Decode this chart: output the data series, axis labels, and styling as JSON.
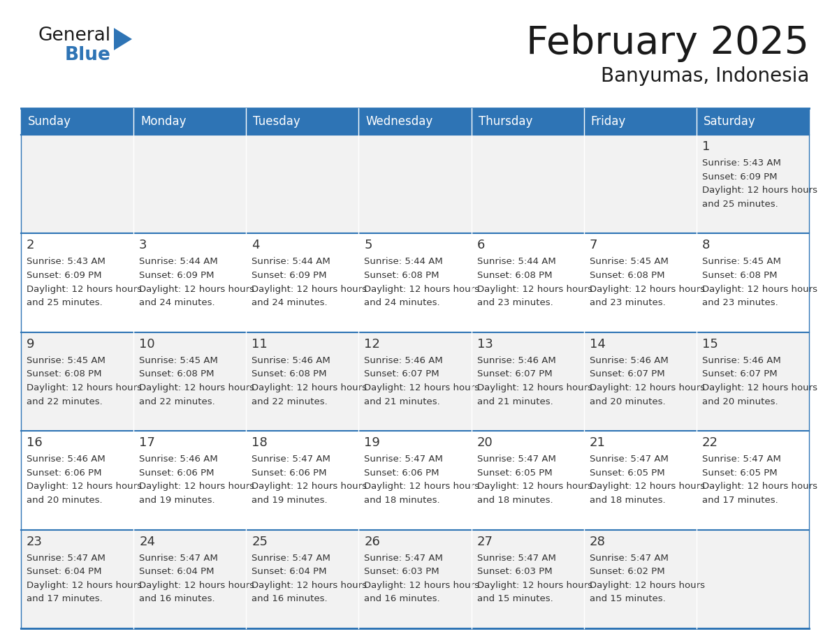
{
  "title": "February 2025",
  "subtitle": "Banyumas, Indonesia",
  "header_color": "#2E74B5",
  "header_text_color": "#FFFFFF",
  "cell_bg_even": "#F2F2F2",
  "cell_bg_odd": "#FFFFFF",
  "border_color": "#2E74B5",
  "text_color": "#333333",
  "days_of_week": [
    "Sunday",
    "Monday",
    "Tuesday",
    "Wednesday",
    "Thursday",
    "Friday",
    "Saturday"
  ],
  "calendar_data": [
    [
      {
        "day": "",
        "sunrise": "",
        "sunset": "",
        "daylight": ""
      },
      {
        "day": "",
        "sunrise": "",
        "sunset": "",
        "daylight": ""
      },
      {
        "day": "",
        "sunrise": "",
        "sunset": "",
        "daylight": ""
      },
      {
        "day": "",
        "sunrise": "",
        "sunset": "",
        "daylight": ""
      },
      {
        "day": "",
        "sunrise": "",
        "sunset": "",
        "daylight": ""
      },
      {
        "day": "",
        "sunrise": "",
        "sunset": "",
        "daylight": ""
      },
      {
        "day": "1",
        "sunrise": "5:43 AM",
        "sunset": "6:09 PM",
        "daylight": "12 hours and 25 minutes."
      }
    ],
    [
      {
        "day": "2",
        "sunrise": "5:43 AM",
        "sunset": "6:09 PM",
        "daylight": "12 hours and 25 minutes."
      },
      {
        "day": "3",
        "sunrise": "5:44 AM",
        "sunset": "6:09 PM",
        "daylight": "12 hours and 24 minutes."
      },
      {
        "day": "4",
        "sunrise": "5:44 AM",
        "sunset": "6:09 PM",
        "daylight": "12 hours and 24 minutes."
      },
      {
        "day": "5",
        "sunrise": "5:44 AM",
        "sunset": "6:08 PM",
        "daylight": "12 hours and 24 minutes."
      },
      {
        "day": "6",
        "sunrise": "5:44 AM",
        "sunset": "6:08 PM",
        "daylight": "12 hours and 23 minutes."
      },
      {
        "day": "7",
        "sunrise": "5:45 AM",
        "sunset": "6:08 PM",
        "daylight": "12 hours and 23 minutes."
      },
      {
        "day": "8",
        "sunrise": "5:45 AM",
        "sunset": "6:08 PM",
        "daylight": "12 hours and 23 minutes."
      }
    ],
    [
      {
        "day": "9",
        "sunrise": "5:45 AM",
        "sunset": "6:08 PM",
        "daylight": "12 hours and 22 minutes."
      },
      {
        "day": "10",
        "sunrise": "5:45 AM",
        "sunset": "6:08 PM",
        "daylight": "12 hours and 22 minutes."
      },
      {
        "day": "11",
        "sunrise": "5:46 AM",
        "sunset": "6:08 PM",
        "daylight": "12 hours and 22 minutes."
      },
      {
        "day": "12",
        "sunrise": "5:46 AM",
        "sunset": "6:07 PM",
        "daylight": "12 hours and 21 minutes."
      },
      {
        "day": "13",
        "sunrise": "5:46 AM",
        "sunset": "6:07 PM",
        "daylight": "12 hours and 21 minutes."
      },
      {
        "day": "14",
        "sunrise": "5:46 AM",
        "sunset": "6:07 PM",
        "daylight": "12 hours and 20 minutes."
      },
      {
        "day": "15",
        "sunrise": "5:46 AM",
        "sunset": "6:07 PM",
        "daylight": "12 hours and 20 minutes."
      }
    ],
    [
      {
        "day": "16",
        "sunrise": "5:46 AM",
        "sunset": "6:06 PM",
        "daylight": "12 hours and 20 minutes."
      },
      {
        "day": "17",
        "sunrise": "5:46 AM",
        "sunset": "6:06 PM",
        "daylight": "12 hours and 19 minutes."
      },
      {
        "day": "18",
        "sunrise": "5:47 AM",
        "sunset": "6:06 PM",
        "daylight": "12 hours and 19 minutes."
      },
      {
        "day": "19",
        "sunrise": "5:47 AM",
        "sunset": "6:06 PM",
        "daylight": "12 hours and 18 minutes."
      },
      {
        "day": "20",
        "sunrise": "5:47 AM",
        "sunset": "6:05 PM",
        "daylight": "12 hours and 18 minutes."
      },
      {
        "day": "21",
        "sunrise": "5:47 AM",
        "sunset": "6:05 PM",
        "daylight": "12 hours and 18 minutes."
      },
      {
        "day": "22",
        "sunrise": "5:47 AM",
        "sunset": "6:05 PM",
        "daylight": "12 hours and 17 minutes."
      }
    ],
    [
      {
        "day": "23",
        "sunrise": "5:47 AM",
        "sunset": "6:04 PM",
        "daylight": "12 hours and 17 minutes."
      },
      {
        "day": "24",
        "sunrise": "5:47 AM",
        "sunset": "6:04 PM",
        "daylight": "12 hours and 16 minutes."
      },
      {
        "day": "25",
        "sunrise": "5:47 AM",
        "sunset": "6:04 PM",
        "daylight": "12 hours and 16 minutes."
      },
      {
        "day": "26",
        "sunrise": "5:47 AM",
        "sunset": "6:03 PM",
        "daylight": "12 hours and 16 minutes."
      },
      {
        "day": "27",
        "sunrise": "5:47 AM",
        "sunset": "6:03 PM",
        "daylight": "12 hours and 15 minutes."
      },
      {
        "day": "28",
        "sunrise": "5:47 AM",
        "sunset": "6:02 PM",
        "daylight": "12 hours and 15 minutes."
      },
      {
        "day": "",
        "sunrise": "",
        "sunset": "",
        "daylight": ""
      }
    ]
  ],
  "logo_text1": "General",
  "logo_text2": "Blue",
  "logo_color1": "#1a1a1a",
  "logo_color2": "#2E74B5",
  "title_fontsize": 40,
  "subtitle_fontsize": 20,
  "header_fontsize": 12,
  "day_num_fontsize": 13,
  "cell_fontsize": 9.5
}
